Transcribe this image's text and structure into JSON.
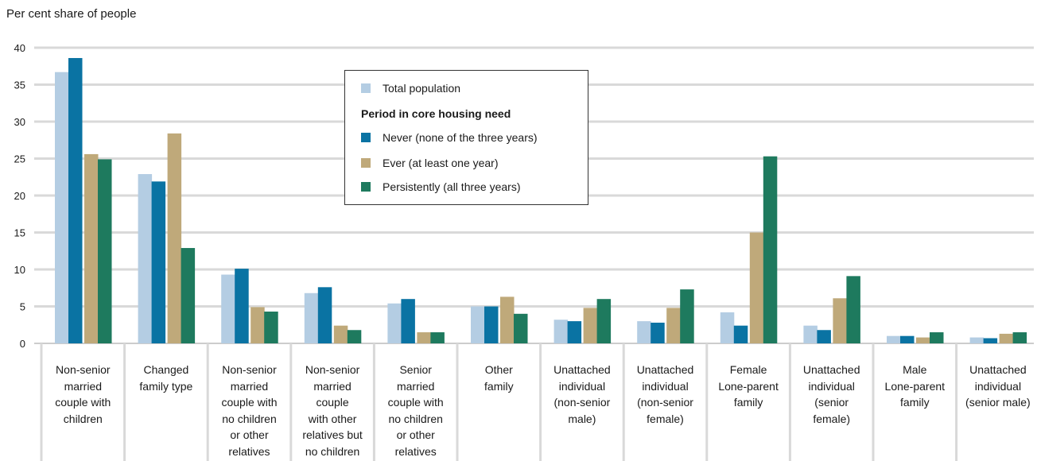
{
  "chart_data": {
    "type": "bar",
    "ylabel": "Per cent share of people",
    "ylim": [
      0,
      40
    ],
    "yticks": [
      0,
      5,
      10,
      15,
      20,
      25,
      30,
      35,
      40
    ],
    "grid": true,
    "legend_position": "top-center",
    "legend_heading": "Period in core housing need",
    "categories": [
      [
        "Non-senior",
        "married",
        "couple with",
        "children"
      ],
      [
        "Changed",
        "family type"
      ],
      [
        "Non-senior",
        "married",
        "couple with",
        "no children",
        "or other",
        "relatives"
      ],
      [
        "Non-senior",
        "married",
        "couple",
        "with other",
        "relatives but",
        "no children"
      ],
      [
        "Senior",
        "married",
        "couple with",
        "no children",
        "or other",
        "relatives"
      ],
      [
        "Other",
        "family"
      ],
      [
        "Unattached",
        "individual",
        "(non-senior",
        "male)"
      ],
      [
        "Unattached",
        "individual",
        "(non-senior",
        "female)"
      ],
      [
        "Female",
        "Lone-parent",
        "family"
      ],
      [
        "Unattached",
        "individual",
        "(senior",
        "female)"
      ],
      [
        "Male",
        "Lone-parent",
        "family"
      ],
      [
        "Unattached",
        "individual",
        "(senior male)"
      ]
    ],
    "series": [
      {
        "name": "Total population",
        "color": "#b4cde3",
        "values": [
          36.7,
          22.9,
          9.3,
          6.8,
          5.4,
          5.0,
          3.2,
          3.0,
          4.2,
          2.4,
          1.0,
          0.8
        ]
      },
      {
        "name": "Never (none of the three years)",
        "color": "#0a73a3",
        "values": [
          38.6,
          21.9,
          10.1,
          7.6,
          6.0,
          5.0,
          3.0,
          2.8,
          2.4,
          1.8,
          1.0,
          0.7
        ]
      },
      {
        "name": "Ever (at least one year)",
        "color": "#bfa97a",
        "values": [
          25.6,
          28.4,
          4.9,
          2.4,
          1.5,
          6.3,
          4.8,
          4.8,
          15.0,
          6.1,
          0.8,
          1.3
        ]
      },
      {
        "name": "Persistently (all three years)",
        "color": "#1e7a5e",
        "values": [
          24.9,
          12.9,
          4.3,
          1.8,
          1.5,
          4.0,
          6.0,
          7.3,
          25.3,
          9.1,
          1.5,
          1.5
        ]
      }
    ]
  }
}
